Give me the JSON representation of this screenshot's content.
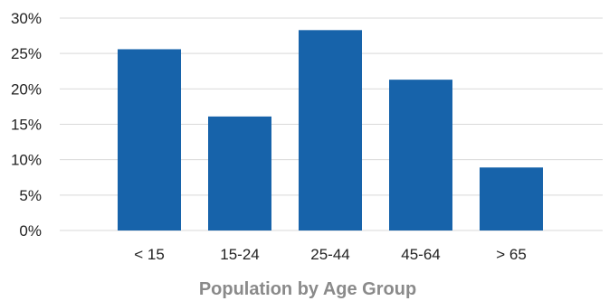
{
  "chart_data": {
    "type": "bar",
    "title": "",
    "xlabel": "Population by Age Group",
    "ylabel": "",
    "categories": [
      "< 15",
      "15-24",
      "25-44",
      "45-64",
      "> 65"
    ],
    "values": [
      25.6,
      16.1,
      28.3,
      21.3,
      8.9
    ],
    "ylim": [
      0,
      30
    ],
    "yticks": [
      0,
      5,
      10,
      15,
      20,
      25,
      30
    ],
    "ytick_labels": [
      "0%",
      "5%",
      "10%",
      "15%",
      "20%",
      "25%",
      "30%"
    ],
    "value_unit": "percent",
    "grid": true,
    "legend": "none",
    "colors": {
      "bar": "#1763AA",
      "grid": "#d9d9d9",
      "xlabel": "#8a8a8a"
    }
  }
}
